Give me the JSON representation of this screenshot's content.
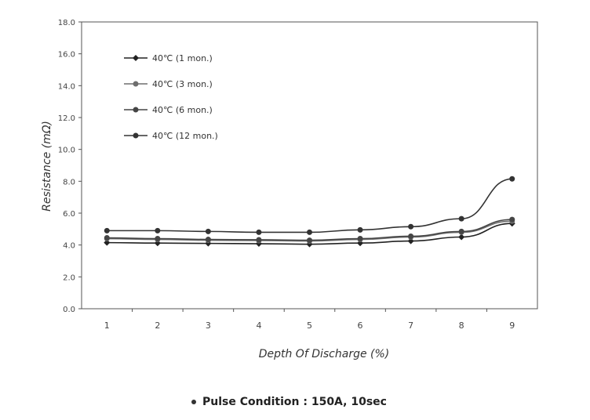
{
  "chart_data": {
    "type": "line",
    "title": "",
    "xlabel": "Depth Of Discharge (%)",
    "ylabel": "Resistance (mΩ)",
    "categories": [
      "1",
      "2",
      "3",
      "4",
      "5",
      "6",
      "7",
      "8",
      "9"
    ],
    "ylim": [
      0,
      18
    ],
    "yticks": [
      "0.0",
      "2.0",
      "4.0",
      "6.0",
      "8.0",
      "10.0",
      "12.0",
      "14.0",
      "16.0",
      "18.0"
    ],
    "grid": false,
    "legend_position": "top-left",
    "series": [
      {
        "name": "40℃ (1 mon.)",
        "marker": "diamond",
        "color": "#222222",
        "values": [
          4.15,
          4.12,
          4.1,
          4.08,
          4.05,
          4.12,
          4.25,
          4.5,
          5.35
        ]
      },
      {
        "name": "40℃ (3 mon.)",
        "marker": "circle",
        "color": "#6e6e6e",
        "values": [
          4.4,
          4.35,
          4.3,
          4.28,
          4.25,
          4.35,
          4.5,
          4.8,
          5.5
        ]
      },
      {
        "name": "40℃ (6 mon.)",
        "marker": "circle",
        "color": "#454545",
        "values": [
          4.45,
          4.4,
          4.35,
          4.33,
          4.3,
          4.4,
          4.55,
          4.85,
          5.6
        ]
      },
      {
        "name": "40℃ (12 mon.)",
        "marker": "circle",
        "color": "#333333",
        "values": [
          4.9,
          4.9,
          4.85,
          4.8,
          4.8,
          4.95,
          5.15,
          5.65,
          8.15
        ]
      }
    ]
  },
  "caption": "Pulse Condition : 150A, 10sec"
}
